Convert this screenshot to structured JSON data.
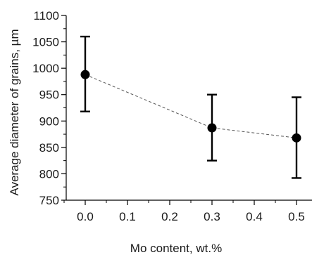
{
  "chart_data": {
    "type": "scatter",
    "title": "",
    "xlabel": "Mo content, wt.%",
    "ylabel": "Average diameter of grains, µm",
    "xlim": [
      -0.1,
      0.55
    ],
    "ylim": [
      750,
      1100
    ],
    "xticks": [
      "0.0",
      "0.1",
      "0.2",
      "0.3",
      "0.4",
      "0.5"
    ],
    "yticks": [
      "750",
      "800",
      "850",
      "900",
      "950",
      "1000",
      "1050",
      "1100"
    ],
    "grid": false,
    "legend": "none",
    "series": [
      {
        "x": [
          0.0,
          0.3,
          0.5
        ],
        "y": [
          988,
          887,
          868
        ],
        "err_low": [
          918,
          825,
          792
        ],
        "err_high": [
          1060,
          950,
          945
        ],
        "line_style": "dashed",
        "marker": "circle",
        "color": "#000000"
      }
    ]
  }
}
